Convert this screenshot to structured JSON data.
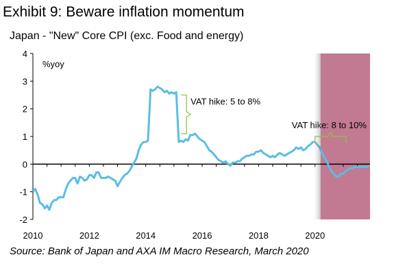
{
  "title": "Exhibit 9: Beware inflation momentum",
  "subtitle": "Japan - \"New\" Core CPI (exc. Food and energy)",
  "source": "Source: Bank of Japan and AXA IM Macro Research, March 2020",
  "colors": {
    "series": "#5bbde2",
    "bracket": "#8dc63f",
    "shade": "#c27a92",
    "axis": "#000000"
  },
  "chart_data": {
    "type": "line",
    "title": "Exhibit 9: Beware inflation momentum",
    "subtitle": "Japan - \"New\" Core CPI (exc. Food and energy)",
    "xlabel": "",
    "ylabel": "%yoy",
    "xlim": [
      2010,
      2021.95
    ],
    "ylim": [
      -2,
      4
    ],
    "x_ticks": [
      "2010",
      "2012",
      "2014",
      "2016",
      "2018",
      "2020"
    ],
    "x_tick_values": [
      2010,
      2012,
      2014,
      2016,
      2018,
      2020
    ],
    "y_ticks": [
      "-2",
      "-1",
      "0",
      "1",
      "2",
      "3",
      "4"
    ],
    "y_tick_values": [
      -2,
      -1,
      0,
      1,
      2,
      3,
      4
    ],
    "grid": false,
    "shaded_region": {
      "x_start": 2020.2,
      "x_end": 2021.95
    },
    "annotations": [
      {
        "text": "VAT hike: 5 to 8%",
        "x_start": 2015.25,
        "y_range": [
          1.1,
          2.5
        ]
      },
      {
        "text": "VAT hike: 8 to 10%",
        "x_start": 2020.0,
        "x_end": 2021.1,
        "y": 1.0
      }
    ],
    "series": [
      {
        "values_x": [
          2010.0,
          2010.08,
          2010.17,
          2010.25,
          2010.33,
          2010.42,
          2010.5,
          2010.58,
          2010.67,
          2010.75,
          2010.83,
          2010.92,
          2011.0,
          2011.08,
          2011.17,
          2011.25,
          2011.33,
          2011.42,
          2011.5,
          2011.58,
          2011.67,
          2011.75,
          2011.83,
          2011.92,
          2012.0,
          2012.08,
          2012.17,
          2012.25,
          2012.33,
          2012.42,
          2012.5,
          2012.58,
          2012.67,
          2012.75,
          2012.83,
          2012.92,
          2013.0,
          2013.08,
          2013.17,
          2013.25,
          2013.33,
          2013.42,
          2013.5,
          2013.58,
          2013.67,
          2013.75,
          2013.83,
          2013.92,
          2014.0,
          2014.08,
          2014.17,
          2014.25,
          2014.33,
          2014.42,
          2014.5,
          2014.58,
          2014.67,
          2014.75,
          2014.83,
          2014.92,
          2015.0,
          2015.08,
          2015.17,
          2015.25,
          2015.33,
          2015.42,
          2015.5,
          2015.58,
          2015.67,
          2015.75,
          2015.83,
          2015.92,
          2016.0,
          2016.08,
          2016.17,
          2016.25,
          2016.33,
          2016.42,
          2016.5,
          2016.58,
          2016.67,
          2016.75,
          2016.83,
          2016.92,
          2017.0,
          2017.08,
          2017.17,
          2017.25,
          2017.33,
          2017.42,
          2017.5,
          2017.58,
          2017.67,
          2017.75,
          2017.83,
          2017.92,
          2018.0,
          2018.08,
          2018.17,
          2018.25,
          2018.33,
          2018.42,
          2018.5,
          2018.58,
          2018.67,
          2018.75,
          2018.83,
          2018.92,
          2019.0,
          2019.08,
          2019.17,
          2019.25,
          2019.33,
          2019.42,
          2019.5,
          2019.58,
          2019.67,
          2019.75,
          2019.83,
          2019.92,
          2020.0,
          2020.08,
          2020.17,
          2020.25,
          2020.33,
          2020.42,
          2020.5,
          2020.58,
          2020.67,
          2020.75,
          2020.83,
          2020.92,
          2021.0,
          2021.08,
          2021.17,
          2021.25,
          2021.33,
          2021.42,
          2021.5,
          2021.58,
          2021.67,
          2021.75,
          2021.83,
          2021.92
        ],
        "values_y": [
          -1.0,
          -0.9,
          -1.1,
          -1.4,
          -1.45,
          -1.6,
          -1.5,
          -1.65,
          -1.4,
          -1.3,
          -1.3,
          -1.2,
          -1.2,
          -1.2,
          -0.9,
          -0.7,
          -0.6,
          -0.5,
          -0.5,
          -0.7,
          -0.45,
          -0.5,
          -0.6,
          -0.55,
          -0.4,
          -0.4,
          -0.5,
          -0.3,
          -0.3,
          -0.5,
          -0.5,
          -0.5,
          -0.45,
          -0.5,
          -0.55,
          -0.6,
          -0.8,
          -0.65,
          -0.5,
          -0.4,
          -0.35,
          -0.25,
          -0.1,
          0.05,
          0.2,
          0.5,
          0.7,
          0.8,
          0.8,
          0.85,
          2.7,
          2.65,
          2.7,
          2.8,
          2.75,
          2.7,
          2.6,
          2.65,
          2.55,
          2.6,
          2.55,
          2.6,
          0.8,
          0.85,
          0.8,
          0.9,
          0.85,
          1.05,
          1.05,
          1.1,
          1.0,
          0.9,
          0.85,
          0.8,
          0.65,
          0.5,
          0.45,
          0.35,
          0.25,
          0.15,
          0.1,
          0.05,
          0.1,
          0.0,
          -0.05,
          0.05,
          0.05,
          0.1,
          0.1,
          0.2,
          0.25,
          0.3,
          0.3,
          0.35,
          0.35,
          0.45,
          0.45,
          0.5,
          0.4,
          0.35,
          0.3,
          0.25,
          0.3,
          0.25,
          0.35,
          0.4,
          0.35,
          0.3,
          0.35,
          0.4,
          0.45,
          0.5,
          0.6,
          0.55,
          0.6,
          0.5,
          0.55,
          0.65,
          0.7,
          0.8,
          0.8,
          0.7,
          0.6,
          0.4,
          0.25,
          0.1,
          -0.1,
          -0.25,
          -0.35,
          -0.45,
          -0.45,
          -0.35,
          -0.35,
          -0.25,
          -0.2,
          -0.15,
          -0.15,
          -0.1,
          -0.1,
          -0.1,
          -0.1,
          -0.1,
          -0.1,
          -0.05
        ]
      }
    ]
  }
}
